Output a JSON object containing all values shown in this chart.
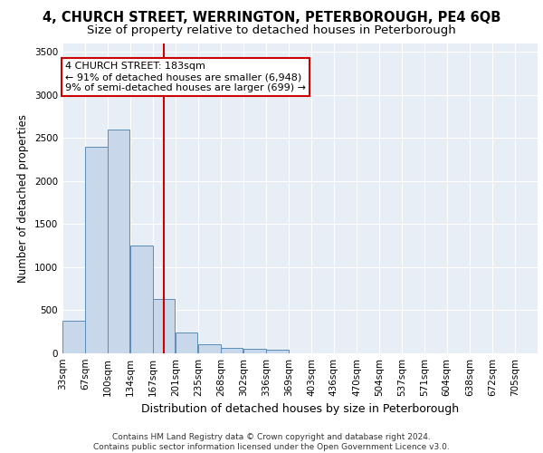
{
  "title_line1": "4, CHURCH STREET, WERRINGTON, PETERBOROUGH, PE4 6QB",
  "title_line2": "Size of property relative to detached houses in Peterborough",
  "xlabel": "Distribution of detached houses by size in Peterborough",
  "ylabel": "Number of detached properties",
  "footer_line1": "Contains HM Land Registry data © Crown copyright and database right 2024.",
  "footer_line2": "Contains public sector information licensed under the Open Government Licence v3.0.",
  "annotation_line1": "4 CHURCH STREET: 183sqm",
  "annotation_line2": "← 91% of detached houses are smaller (6,948)",
  "annotation_line3": "9% of semi-detached houses are larger (699) →",
  "bar_color": "#c8d8ea",
  "bar_edge_color": "#5b8db8",
  "ref_line_color": "#cc0000",
  "ref_line_x": 183,
  "categories": [
    "33sqm",
    "67sqm",
    "100sqm",
    "134sqm",
    "167sqm",
    "201sqm",
    "235sqm",
    "268sqm",
    "302sqm",
    "336sqm",
    "369sqm",
    "403sqm",
    "436sqm",
    "470sqm",
    "504sqm",
    "537sqm",
    "571sqm",
    "604sqm",
    "638sqm",
    "672sqm",
    "705sqm"
  ],
  "bin_edges": [
    33,
    67,
    100,
    134,
    167,
    201,
    235,
    268,
    302,
    336,
    369,
    403,
    436,
    470,
    504,
    537,
    571,
    604,
    638,
    672,
    705
  ],
  "bin_width": 34,
  "values": [
    380,
    2400,
    2600,
    1250,
    630,
    245,
    110,
    65,
    55,
    45,
    0,
    0,
    0,
    0,
    0,
    0,
    0,
    0,
    0,
    0,
    0
  ],
  "ylim": [
    0,
    3600
  ],
  "yticks": [
    0,
    500,
    1000,
    1500,
    2000,
    2500,
    3000,
    3500
  ],
  "plot_bg_color": "#e8eef5",
  "title_fontsize": 10.5,
  "subtitle_fontsize": 9.5,
  "ylabel_fontsize": 8.5,
  "xlabel_fontsize": 9,
  "tick_fontsize": 7.5,
  "footer_fontsize": 6.5,
  "annotation_fontsize": 8
}
